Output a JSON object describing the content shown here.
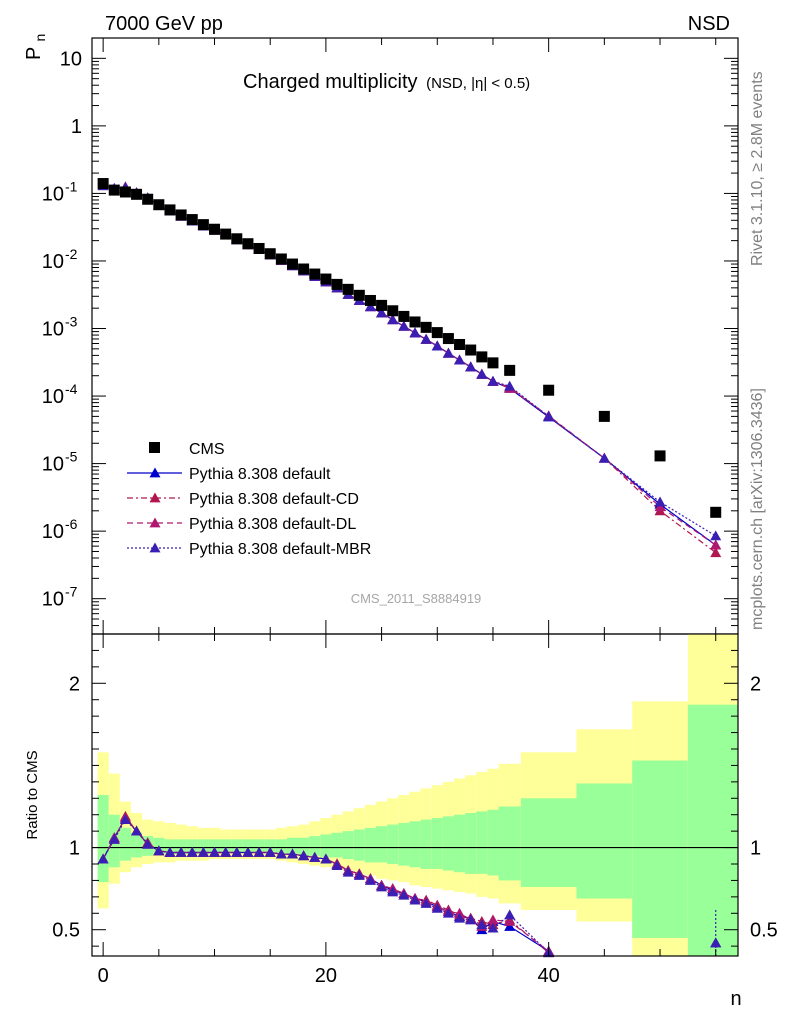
{
  "header": {
    "left": "7000 GeV pp",
    "right": "NSD",
    "title_main": "Charged multiplicity",
    "title_sub": "(NSD, |η| < 0.5)",
    "watermark": "CMS_2011_S8884919",
    "side_top": "Rivet 3.1.10, ≥ 2.8M events",
    "side_bottom": "mcplots.cern.ch [arXiv:1306.3436]"
  },
  "colors": {
    "cms": "#000000",
    "default": "#0000cc",
    "cd": "#b0174f",
    "dl": "#b0176f",
    "mbr": "#3b1fb3",
    "band_inner": "#99ff99",
    "band_outer": "#ffff99"
  },
  "chart_data": [
    {
      "type": "scatter",
      "panel": "main",
      "ylabel": "P",
      "ylabel_sub": "n",
      "yscale": "log",
      "ylim": [
        3e-08,
        20
      ],
      "xlim": [
        -1,
        57
      ],
      "yticks": [
        {
          "v": 10,
          "label": "10",
          "exp": ""
        },
        {
          "v": 1,
          "label": "1",
          "exp": ""
        },
        {
          "v": 0.1,
          "label": "10",
          "exp": "-1"
        },
        {
          "v": 0.01,
          "label": "10",
          "exp": "-2"
        },
        {
          "v": 0.001,
          "label": "10",
          "exp": "-3"
        },
        {
          "v": 0.0001,
          "label": "10",
          "exp": "-4"
        },
        {
          "v": 1e-05,
          "label": "10",
          "exp": "-5"
        },
        {
          "v": 1e-06,
          "label": "10",
          "exp": "-6"
        },
        {
          "v": 1e-07,
          "label": "10",
          "exp": "-7"
        }
      ],
      "legend": [
        {
          "label": "CMS",
          "key": "cms",
          "style": "square"
        },
        {
          "label": "Pythia 8.308 default",
          "key": "default",
          "style": "solid"
        },
        {
          "label": "Pythia 8.308 default-CD",
          "key": "cd",
          "style": "dashdot"
        },
        {
          "label": "Pythia 8.308 default-DL",
          "key": "dl",
          "style": "dash"
        },
        {
          "label": "Pythia 8.308 default-MBR",
          "key": "mbr",
          "style": "dot"
        }
      ],
      "data": {
        "x": [
          0,
          1,
          2,
          3,
          4,
          5,
          6,
          7,
          8,
          9,
          10,
          11,
          12,
          13,
          14,
          15,
          16,
          17,
          18,
          19,
          20,
          21,
          22,
          23,
          24,
          25,
          26,
          27,
          28,
          29,
          30,
          31,
          32,
          33,
          34,
          35,
          36.5,
          40,
          45,
          50,
          55
        ],
        "cms": [
          0.14,
          0.112,
          0.105,
          0.097,
          0.082,
          0.068,
          0.057,
          0.048,
          0.041,
          0.0345,
          0.0295,
          0.025,
          0.0213,
          0.018,
          0.0153,
          0.0128,
          0.0107,
          0.009,
          0.0076,
          0.0064,
          0.0054,
          0.0045,
          0.0038,
          0.0031,
          0.0026,
          0.0022,
          0.00183,
          0.00151,
          0.00125,
          0.00104,
          0.00087,
          0.00071,
          0.00058,
          0.00048,
          0.00038,
          0.00031,
          0.00024,
          0.000122,
          5e-05,
          1.3e-05,
          1.9e-06
        ],
        "default": [
          0.131,
          0.118,
          0.124,
          0.102,
          0.086,
          0.066,
          0.055,
          0.046,
          0.039,
          0.033,
          0.0285,
          0.0241,
          0.0206,
          0.0174,
          0.0148,
          0.0123,
          0.0102,
          0.0085,
          0.0071,
          0.0059,
          0.0049,
          0.004,
          0.0032,
          0.0026,
          0.0021,
          0.0017,
          0.00135,
          0.00108,
          0.00086,
          0.00069,
          0.00055,
          0.00043,
          0.00034,
          0.00027,
          0.00021,
          0.000165,
          0.00013,
          4.9e-05,
          1.2e-05,
          2.5e-06,
          6.2e-07
        ],
        "cd": [
          0.13,
          0.118,
          0.125,
          0.103,
          0.086,
          0.066,
          0.055,
          0.046,
          0.039,
          0.033,
          0.0285,
          0.0241,
          0.0206,
          0.0174,
          0.0148,
          0.0123,
          0.0102,
          0.0085,
          0.0071,
          0.0059,
          0.0049,
          0.004,
          0.0032,
          0.0026,
          0.0021,
          0.0017,
          0.00135,
          0.00108,
          0.00086,
          0.00069,
          0.00055,
          0.00043,
          0.00034,
          0.00027,
          0.00021,
          0.000165,
          0.000135,
          5e-05,
          1.2e-05,
          2e-06,
          4.8e-07
        ],
        "dl": [
          0.131,
          0.118,
          0.124,
          0.102,
          0.086,
          0.066,
          0.055,
          0.046,
          0.039,
          0.033,
          0.0285,
          0.0241,
          0.0206,
          0.0174,
          0.0148,
          0.0123,
          0.0102,
          0.0085,
          0.0071,
          0.0059,
          0.0049,
          0.004,
          0.0032,
          0.0026,
          0.0021,
          0.0017,
          0.00135,
          0.00108,
          0.00086,
          0.00069,
          0.00055,
          0.00043,
          0.00034,
          0.00027,
          0.00021,
          0.000165,
          0.00013,
          5.1e-05,
          1.2e-05,
          2.3e-06,
          6.2e-07
        ],
        "mbr": [
          0.13,
          0.119,
          0.123,
          0.102,
          0.086,
          0.066,
          0.055,
          0.046,
          0.039,
          0.033,
          0.0285,
          0.0241,
          0.0206,
          0.0174,
          0.0148,
          0.0123,
          0.0102,
          0.0085,
          0.0071,
          0.0059,
          0.0049,
          0.004,
          0.0032,
          0.0026,
          0.0021,
          0.0017,
          0.00135,
          0.00108,
          0.00086,
          0.00069,
          0.00055,
          0.00043,
          0.00034,
          0.00027,
          0.00021,
          0.000165,
          0.00014,
          5e-05,
          1.2e-05,
          2.7e-06,
          8.5e-07
        ]
      }
    },
    {
      "type": "line",
      "panel": "ratio",
      "ylabel": "Ratio to CMS",
      "xlabel": "n",
      "ylim": [
        0.34,
        2.3
      ],
      "xlim": [
        -1,
        57
      ],
      "yticks": [
        {
          "v": 0.5,
          "label": "0.5"
        },
        {
          "v": 1,
          "label": "1"
        },
        {
          "v": 2,
          "label": "2"
        }
      ],
      "xticks": [
        {
          "v": 0,
          "label": "0"
        },
        {
          "v": 20,
          "label": "20"
        },
        {
          "v": 40,
          "label": "40"
        }
      ],
      "band": {
        "edges": [
          -0.5,
          0.5,
          1.5,
          2.5,
          3.5,
          4.5,
          5.5,
          6.5,
          7.5,
          8.5,
          9.5,
          10.5,
          11.5,
          12.5,
          13.5,
          14.5,
          15.5,
          16.5,
          17.5,
          18.5,
          19.5,
          20.5,
          21.5,
          22.5,
          23.5,
          24.5,
          25.5,
          26.5,
          27.5,
          28.5,
          29.5,
          30.5,
          31.5,
          32.5,
          33.5,
          34.5,
          35.5,
          37.5,
          42.5,
          47.5,
          52.5,
          57.5
        ],
        "outer_lo": [
          0.63,
          0.78,
          0.85,
          0.88,
          0.9,
          0.91,
          0.91,
          0.92,
          0.92,
          0.92,
          0.93,
          0.93,
          0.93,
          0.93,
          0.93,
          0.93,
          0.92,
          0.91,
          0.9,
          0.89,
          0.88,
          0.87,
          0.86,
          0.84,
          0.83,
          0.81,
          0.8,
          0.79,
          0.77,
          0.76,
          0.75,
          0.74,
          0.73,
          0.72,
          0.7,
          0.69,
          0.66,
          0.62,
          0.55,
          0.3,
          0.3
        ],
        "outer_hi": [
          1.58,
          1.45,
          1.28,
          1.21,
          1.17,
          1.16,
          1.15,
          1.14,
          1.13,
          1.12,
          1.12,
          1.11,
          1.11,
          1.11,
          1.11,
          1.11,
          1.12,
          1.13,
          1.14,
          1.16,
          1.18,
          1.2,
          1.22,
          1.24,
          1.26,
          1.28,
          1.3,
          1.32,
          1.34,
          1.36,
          1.38,
          1.4,
          1.42,
          1.44,
          1.46,
          1.48,
          1.51,
          1.58,
          1.72,
          1.89,
          2.4
        ],
        "inner_lo": [
          0.79,
          0.88,
          0.92,
          0.94,
          0.95,
          0.96,
          0.96,
          0.96,
          0.96,
          0.96,
          0.97,
          0.97,
          0.97,
          0.97,
          0.97,
          0.97,
          0.96,
          0.96,
          0.95,
          0.95,
          0.94,
          0.94,
          0.93,
          0.92,
          0.91,
          0.91,
          0.9,
          0.89,
          0.88,
          0.87,
          0.87,
          0.86,
          0.85,
          0.84,
          0.84,
          0.83,
          0.8,
          0.76,
          0.69,
          0.45,
          0.3
        ],
        "inner_hi": [
          1.32,
          1.2,
          1.12,
          1.09,
          1.07,
          1.06,
          1.05,
          1.05,
          1.05,
          1.05,
          1.05,
          1.05,
          1.05,
          1.05,
          1.05,
          1.05,
          1.05,
          1.06,
          1.06,
          1.07,
          1.08,
          1.09,
          1.1,
          1.11,
          1.12,
          1.13,
          1.14,
          1.15,
          1.16,
          1.17,
          1.18,
          1.19,
          1.2,
          1.21,
          1.22,
          1.23,
          1.25,
          1.3,
          1.39,
          1.53,
          1.87
        ]
      },
      "data": {
        "x": [
          0,
          1,
          2,
          3,
          4,
          5,
          6,
          7,
          8,
          9,
          10,
          11,
          12,
          13,
          14,
          15,
          16,
          17,
          18,
          19,
          20,
          21,
          22,
          23,
          24,
          25,
          26,
          27,
          28,
          29,
          30,
          31,
          32,
          33,
          34,
          35,
          36.5,
          40,
          55
        ],
        "default": [
          0.93,
          1.06,
          1.18,
          1.1,
          1.02,
          0.98,
          0.97,
          0.97,
          0.97,
          0.97,
          0.97,
          0.97,
          0.97,
          0.97,
          0.97,
          0.97,
          0.96,
          0.96,
          0.95,
          0.94,
          0.93,
          0.9,
          0.86,
          0.84,
          0.81,
          0.77,
          0.74,
          0.72,
          0.69,
          0.67,
          0.64,
          0.61,
          0.58,
          0.57,
          0.5,
          0.55,
          0.52,
          0.37,
          0.42
        ],
        "cd": [
          0.93,
          1.05,
          1.19,
          1.1,
          1.03,
          0.98,
          0.97,
          0.97,
          0.97,
          0.97,
          0.97,
          0.97,
          0.97,
          0.97,
          0.97,
          0.97,
          0.96,
          0.96,
          0.95,
          0.94,
          0.93,
          0.9,
          0.86,
          0.84,
          0.81,
          0.77,
          0.75,
          0.72,
          0.69,
          0.68,
          0.65,
          0.62,
          0.59,
          0.57,
          0.55,
          0.53,
          0.56,
          0.36,
          null
        ],
        "dl": [
          0.93,
          1.06,
          1.18,
          1.1,
          1.02,
          0.98,
          0.97,
          0.97,
          0.97,
          0.97,
          0.97,
          0.97,
          0.97,
          0.97,
          0.97,
          0.97,
          0.96,
          0.96,
          0.95,
          0.94,
          0.93,
          0.9,
          0.86,
          0.84,
          0.81,
          0.77,
          0.75,
          0.72,
          0.69,
          0.67,
          0.64,
          0.61,
          0.6,
          0.56,
          0.52,
          0.56,
          0.55,
          0.37,
          null
        ],
        "mbr": [
          0.93,
          1.05,
          1.17,
          1.1,
          1.02,
          0.98,
          0.97,
          0.97,
          0.97,
          0.97,
          0.97,
          0.97,
          0.97,
          0.97,
          0.97,
          0.97,
          0.96,
          0.96,
          0.95,
          0.94,
          0.93,
          0.89,
          0.85,
          0.83,
          0.8,
          0.76,
          0.73,
          0.71,
          0.68,
          0.66,
          0.63,
          0.6,
          0.57,
          0.56,
          0.53,
          0.51,
          0.59,
          0.36,
          0.42
        ]
      }
    }
  ]
}
